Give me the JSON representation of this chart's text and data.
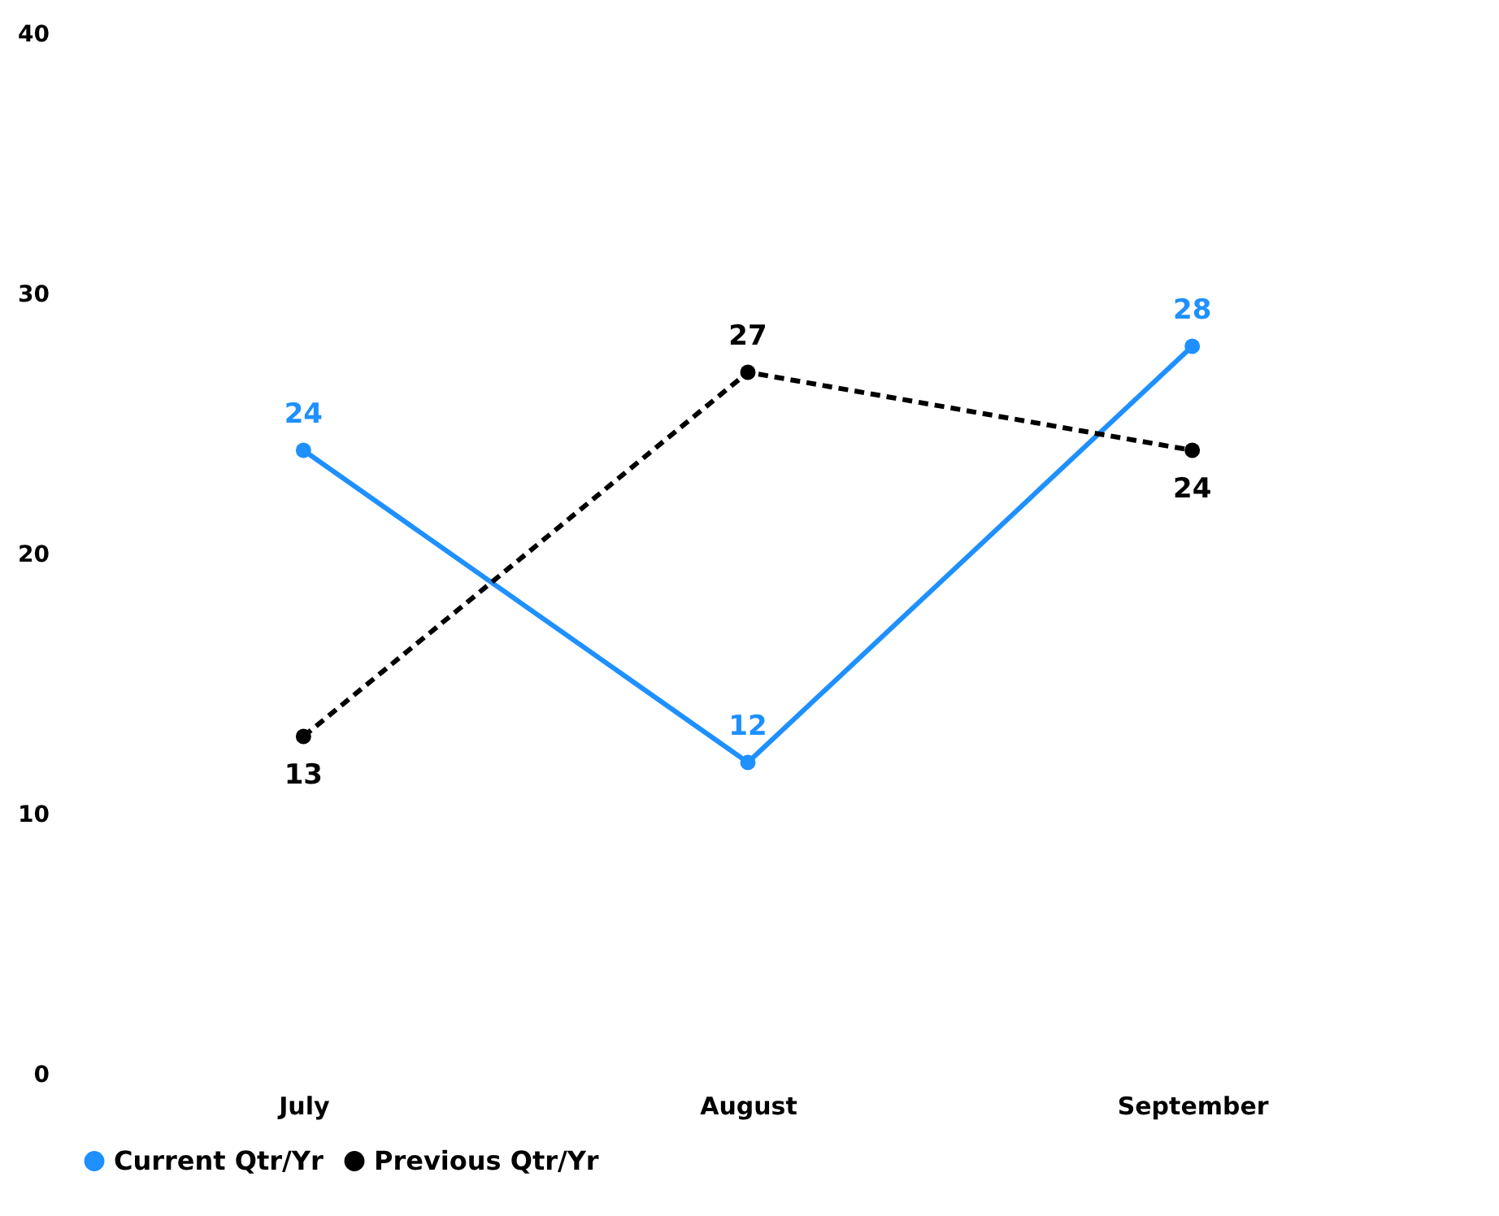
{
  "chart_data": {
    "type": "line",
    "categories": [
      "July",
      "August",
      "September"
    ],
    "series": [
      {
        "name": "Current Qtr/Yr",
        "color": "#1e90ff",
        "values": [
          24,
          12,
          28
        ]
      },
      {
        "name": "Previous Qtr/Yr",
        "color": "#000000",
        "values": [
          13,
          27,
          24
        ],
        "line_style": "dashed"
      }
    ],
    "ylim": [
      0,
      40
    ],
    "yticks": [
      0,
      10,
      20,
      30,
      40
    ],
    "grid": false,
    "legend": "bottom",
    "marker": "circle",
    "data_labels": true
  }
}
